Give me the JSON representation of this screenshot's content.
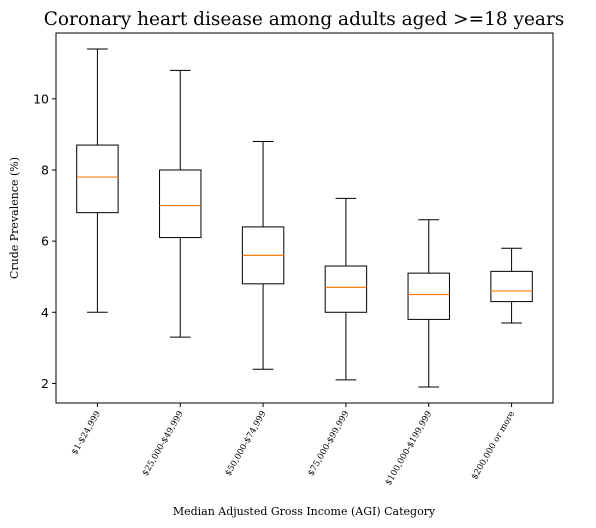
{
  "chart_data": {
    "type": "box",
    "title": "Coronary heart disease among adults aged >=18 years",
    "xlabel": "Median Adjusted Gross Income (AGI) Category",
    "ylabel": "Crude Prevalence (%)",
    "ylim": [
      1.45,
      11.85
    ],
    "yticks": [
      2,
      4,
      6,
      8,
      10
    ],
    "grid": false,
    "colors": {
      "box": "#000000",
      "median": "#ff7f0e",
      "background": "#ffffff"
    },
    "categories": [
      "$1-$24,999",
      "$25,000-$49,999",
      "$50,000-$74,999",
      "$75,000-$99,999",
      "$100,000-$199,999",
      "$200,000 or more"
    ],
    "boxes": [
      {
        "whisker_low": 4.0,
        "q1": 6.8,
        "median": 7.8,
        "q3": 8.7,
        "whisker_high": 11.4
      },
      {
        "whisker_low": 3.3,
        "q1": 6.1,
        "median": 7.0,
        "q3": 8.0,
        "whisker_high": 10.8
      },
      {
        "whisker_low": 2.4,
        "q1": 4.8,
        "median": 5.6,
        "q3": 6.4,
        "whisker_high": 8.8
      },
      {
        "whisker_low": 2.1,
        "q1": 4.0,
        "median": 4.7,
        "q3": 5.3,
        "whisker_high": 7.2
      },
      {
        "whisker_low": 1.9,
        "q1": 3.8,
        "median": 4.5,
        "q3": 5.1,
        "whisker_high": 6.6
      },
      {
        "whisker_low": 3.7,
        "q1": 4.3,
        "median": 4.6,
        "q3": 5.15,
        "whisker_high": 5.8
      }
    ]
  }
}
